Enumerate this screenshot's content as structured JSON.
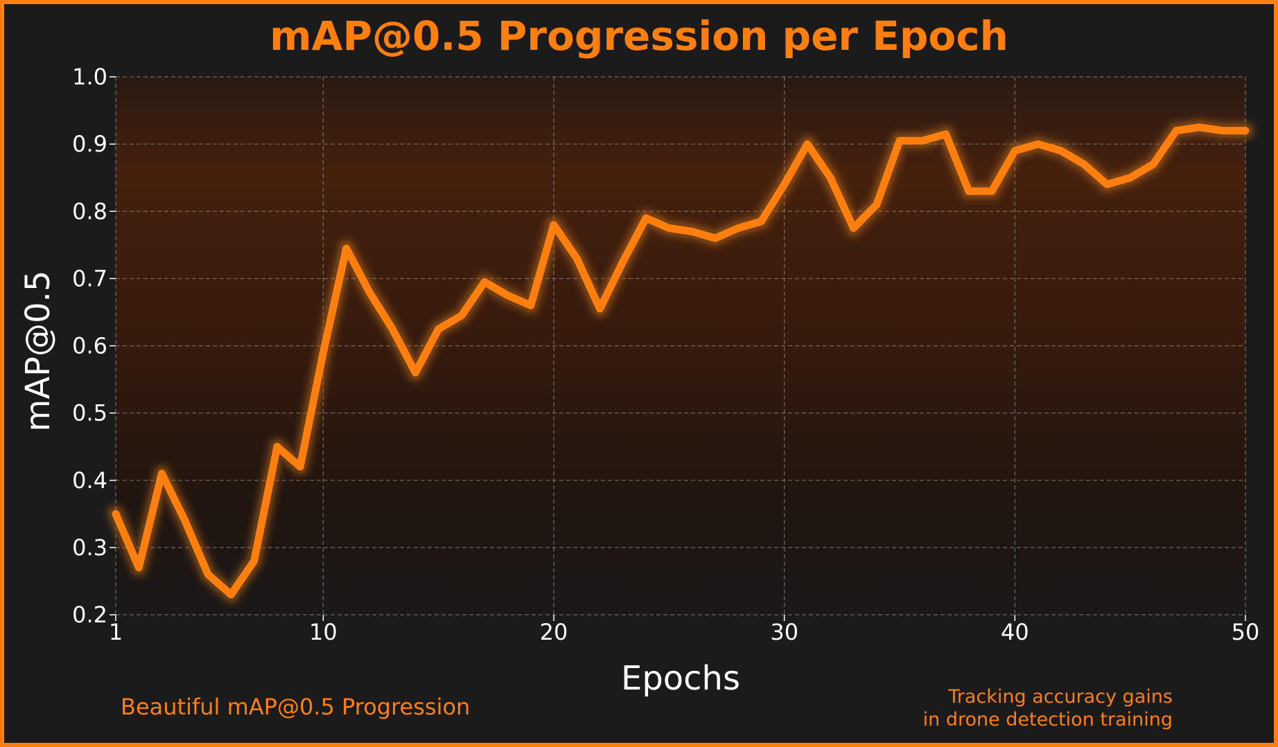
{
  "chart_data": {
    "type": "line",
    "title": "mAP@0.5 Progression per Epoch",
    "xlabel": "Epochs",
    "ylabel": "mAP@0.5",
    "xlim": [
      1,
      50
    ],
    "ylim": [
      0.2,
      1.0
    ],
    "xticks": [
      1,
      10,
      20,
      30,
      40,
      50
    ],
    "yticks": [
      0.2,
      0.3,
      0.4,
      0.5,
      0.6,
      0.7,
      0.8,
      0.9,
      1.0
    ],
    "ytick_labels": [
      "0.2",
      "0.3",
      "0.4",
      "0.5",
      "0.6",
      "0.7",
      "0.8",
      "0.9",
      "1.0"
    ],
    "grid": true,
    "series": [
      {
        "color": "#ff7f0e",
        "x": [
          1,
          2,
          3,
          4,
          5,
          6,
          7,
          8,
          9,
          10,
          11,
          12,
          13,
          14,
          15,
          16,
          17,
          18,
          19,
          20,
          21,
          22,
          23,
          24,
          25,
          26,
          27,
          28,
          29,
          30,
          31,
          32,
          33,
          34,
          35,
          36,
          37,
          38,
          39,
          40,
          41,
          42,
          43,
          44,
          45,
          46,
          47,
          48,
          49,
          50
        ],
        "values": [
          0.35,
          0.27,
          0.41,
          0.34,
          0.26,
          0.23,
          0.28,
          0.45,
          0.42,
          0.59,
          0.745,
          0.68,
          0.625,
          0.56,
          0.625,
          0.645,
          0.695,
          0.675,
          0.66,
          0.78,
          0.73,
          0.655,
          0.725,
          0.79,
          0.775,
          0.77,
          0.76,
          0.775,
          0.785,
          0.84,
          0.9,
          0.85,
          0.775,
          0.81,
          0.905,
          0.905,
          0.915,
          0.83,
          0.83,
          0.89,
          0.9,
          0.89,
          0.87,
          0.84,
          0.85,
          0.87,
          0.92,
          0.925,
          0.92,
          0.92
        ]
      }
    ]
  },
  "annotations": {
    "left": "Beautiful mAP@0.5 Progression",
    "right_line1": "Tracking accuracy gains",
    "right_line2": "in drone detection training"
  },
  "colors": {
    "accent": "#ff7f0e",
    "background": "#1b1b1b",
    "text": "#ffffff",
    "grid": "#9a9a9a"
  }
}
